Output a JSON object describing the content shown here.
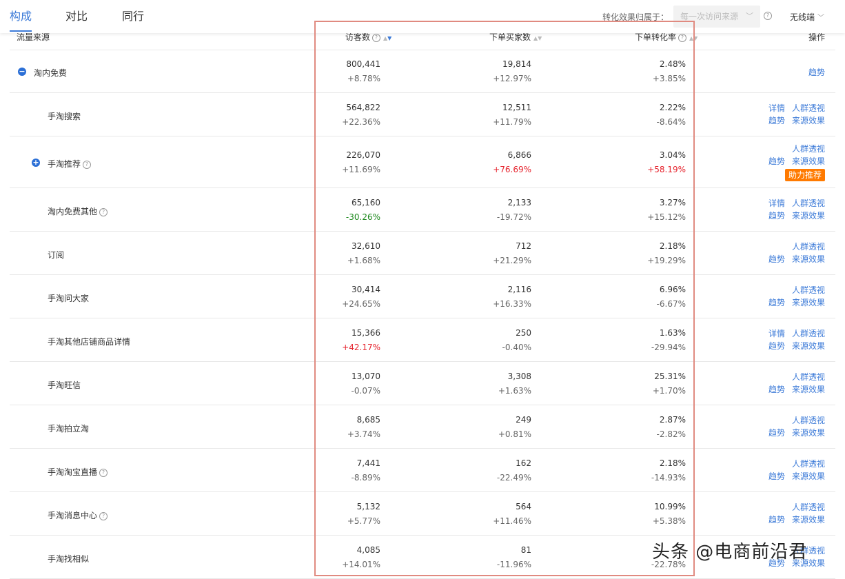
{
  "tabs": [
    {
      "label": "构成",
      "active": true
    },
    {
      "label": "对比",
      "active": false
    },
    {
      "label": "同行",
      "active": false
    }
  ],
  "attribution": {
    "label": "转化效果归属于：",
    "value": "每一次访问来源"
  },
  "device": {
    "label": "无线端"
  },
  "columns": {
    "source": "流量来源",
    "visitors": "访客数",
    "buyers": "下单买家数",
    "conversion": "下单转化率",
    "ops": "操作"
  },
  "actions": {
    "detail": "详情",
    "crowd": "人群透视",
    "trend": "趋势",
    "effect": "来源效果",
    "boost": "助力推荐"
  },
  "rows": [
    {
      "name": "淘内免费",
      "level": 0,
      "toggle": "collapse",
      "help": false,
      "visitors": "800,441",
      "visitors_change": "+8.78%",
      "buyers": "19,814",
      "buyers_change": "+12.97%",
      "conversion": "2.48%",
      "conversion_change": "+3.85%"
    },
    {
      "name": "手淘搜索",
      "level": 1,
      "help": false,
      "visitors": "564,822",
      "visitors_change": "+22.36%",
      "buyers": "12,511",
      "buyers_change": "+11.79%",
      "conversion": "2.22%",
      "conversion_change": "-8.64%"
    },
    {
      "name": "手淘推荐",
      "level": 1,
      "toggle": "expand",
      "help": true,
      "visitors": "226,070",
      "visitors_change": "+11.69%",
      "buyers": "6,866",
      "buyers_change": "+76.69%",
      "conversion": "3.04%",
      "conversion_change": "+58.19%"
    },
    {
      "name": "淘内免费其他",
      "level": 1,
      "help": true,
      "visitors": "65,160",
      "visitors_change": "-30.26%",
      "buyers": "2,133",
      "buyers_change": "-19.72%",
      "conversion": "3.27%",
      "conversion_change": "+15.12%"
    },
    {
      "name": "订阅",
      "level": 1,
      "help": false,
      "visitors": "32,610",
      "visitors_change": "+1.68%",
      "buyers": "712",
      "buyers_change": "+21.29%",
      "conversion": "2.18%",
      "conversion_change": "+19.29%"
    },
    {
      "name": "手淘问大家",
      "level": 1,
      "help": false,
      "visitors": "30,414",
      "visitors_change": "+24.65%",
      "buyers": "2,116",
      "buyers_change": "+16.33%",
      "conversion": "6.96%",
      "conversion_change": "-6.67%"
    },
    {
      "name": "手淘其他店铺商品详情",
      "level": 1,
      "help": false,
      "visitors": "15,366",
      "visitors_change": "+42.17%",
      "buyers": "250",
      "buyers_change": "-0.40%",
      "conversion": "1.63%",
      "conversion_change": "-29.94%"
    },
    {
      "name": "手淘旺信",
      "level": 1,
      "help": false,
      "visitors": "13,070",
      "visitors_change": "-0.07%",
      "buyers": "3,308",
      "buyers_change": "+1.63%",
      "conversion": "25.31%",
      "conversion_change": "+1.70%"
    },
    {
      "name": "手淘拍立淘",
      "level": 1,
      "help": false,
      "visitors": "8,685",
      "visitors_change": "+3.74%",
      "buyers": "249",
      "buyers_change": "+0.81%",
      "conversion": "2.87%",
      "conversion_change": "-2.82%"
    },
    {
      "name": "手淘淘宝直播",
      "level": 1,
      "help": true,
      "visitors": "7,441",
      "visitors_change": "-8.89%",
      "buyers": "162",
      "buyers_change": "-22.49%",
      "conversion": "2.18%",
      "conversion_change": "-14.93%"
    },
    {
      "name": "手淘消息中心",
      "level": 1,
      "help": true,
      "visitors": "5,132",
      "visitors_change": "+5.77%",
      "buyers": "564",
      "buyers_change": "+11.46%",
      "conversion": "10.99%",
      "conversion_change": "+5.38%"
    },
    {
      "name": "手淘找相似",
      "level": 1,
      "help": false,
      "visitors": "4,085",
      "visitors_change": "+14.01%",
      "buyers": "81",
      "buyers_change": "-11.96%",
      "conversion": "",
      "conversion_change": "-22.78%"
    }
  ],
  "watermark": {
    "text": "头条 @电商前沿君"
  }
}
